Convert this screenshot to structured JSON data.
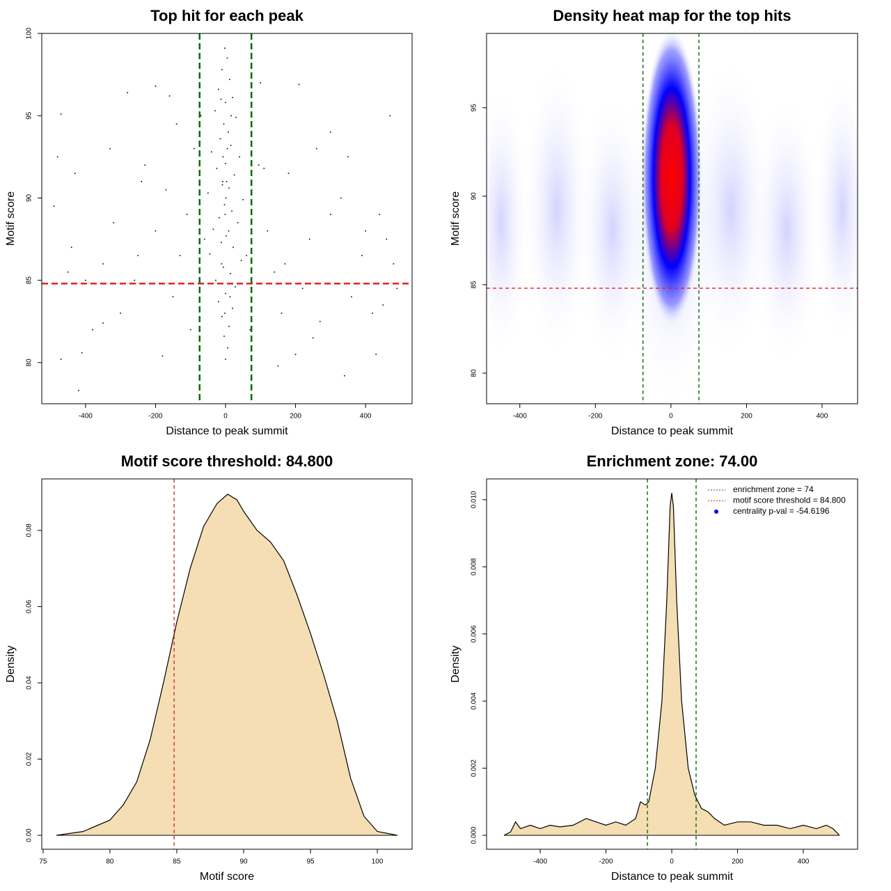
{
  "chart_data": [
    {
      "type": "scatter",
      "title": "Top hit for each peak",
      "xlabel": "Distance to peak summit",
      "ylabel": "Motif score",
      "xlim": [
        -525,
        533
      ],
      "ylim": [
        77.5,
        100
      ],
      "xticks": [
        -400,
        -200,
        0,
        200,
        400
      ],
      "yticks": [
        80,
        85,
        90,
        95,
        100
      ],
      "color": "#000000",
      "x": [
        -2,
        5,
        -10,
        12,
        -20,
        20,
        0,
        -30,
        30,
        -5,
        8,
        -15,
        15,
        -40,
        40,
        0,
        -25,
        25,
        -8,
        10,
        -50,
        50,
        -3,
        18,
        -18,
        35,
        -35,
        2,
        -12,
        22,
        -45,
        45,
        -6,
        14,
        -28,
        28,
        0,
        -20,
        20,
        -10,
        10,
        -4,
        6,
        0,
        -90,
        95,
        -110,
        120,
        -130,
        140,
        -150,
        160,
        -170,
        180,
        -200,
        210,
        -230,
        240,
        -260,
        270,
        -280,
        300,
        -320,
        330,
        -350,
        360,
        -380,
        390,
        -410,
        420,
        -430,
        440,
        -450,
        460,
        -470,
        480,
        -490,
        490,
        -420,
        340,
        -300,
        250,
        -240,
        200,
        -180,
        150,
        -160,
        100,
        -60,
        60,
        -70,
        70,
        -470,
        430,
        -350,
        300,
        -200,
        220,
        -100,
        110,
        -140,
        170,
        -250,
        260,
        -330,
        350,
        -400,
        400,
        -440,
        450,
        -480,
        470,
        5,
        -7,
        3,
        -1,
        9,
        -11,
        13,
        -2,
        1,
        -9,
        16,
        -13
      ],
      "y": [
        99.1,
        98.5,
        97.8,
        97.2,
        96.6,
        96.1,
        95.8,
        95.3,
        94.9,
        94.5,
        94.0,
        93.6,
        93.2,
        92.8,
        92.5,
        92.1,
        91.8,
        91.4,
        91.0,
        90.6,
        90.3,
        89.9,
        89.6,
        89.2,
        88.8,
        88.5,
        88.1,
        87.7,
        87.3,
        87.0,
        86.6,
        86.2,
        85.8,
        85.4,
        85.0,
        84.6,
        84.2,
        83.7,
        83.3,
        82.8,
        82.2,
        81.6,
        80.9,
        80.2,
        93.0,
        92.0,
        89.0,
        88.0,
        86.5,
        85.5,
        84.0,
        83.0,
        90.5,
        91.5,
        96.8,
        96.9,
        92.0,
        87.5,
        85.0,
        82.5,
        96.4,
        94.0,
        88.5,
        90.0,
        86.0,
        84.0,
        82.0,
        86.5,
        80.6,
        83.0,
        91.5,
        89.0,
        85.5,
        87.5,
        95.1,
        86.0,
        89.5,
        84.5,
        78.3,
        79.2,
        83.0,
        81.5,
        91.0,
        80.5,
        80.4,
        79.8,
        96.2,
        97.0,
        87.5,
        86.5,
        95.0,
        82.0,
        80.2,
        80.5,
        82.4,
        89.0,
        88.0,
        84.5,
        82.0,
        91.8,
        94.5,
        86.0,
        86.5,
        93.0,
        93.0,
        92.5,
        85.0,
        88.0,
        87.0,
        83.5,
        92.5,
        95.0,
        93.0,
        92.5,
        91.0,
        89.0,
        88.0,
        86.0,
        84.0,
        83.0,
        90.0,
        90.8,
        95.0,
        96.0
      ],
      "hlines": [
        {
          "value": 84.8,
          "color": "#e02020"
        }
      ],
      "vlines": [
        {
          "value": -74,
          "color": "#0a6a0a"
        },
        {
          "value": 74,
          "color": "#0a6a0a"
        }
      ]
    },
    {
      "type": "heatmap",
      "title": "Density heat map for the top hits",
      "xlabel": "Distance to peak summit",
      "ylabel": "Motif score",
      "xlim": [
        -488,
        494
      ],
      "ylim": [
        78.27,
        99.2
      ],
      "xticks": [
        -400,
        -200,
        0,
        200,
        400
      ],
      "yticks": [
        80,
        85,
        90,
        95
      ],
      "hlines": [
        {
          "value": 84.8,
          "color": "#e02020"
        }
      ],
      "vlines": [
        {
          "value": -74,
          "color": "#0a6a0a"
        },
        {
          "value": 74,
          "color": "#0a6a0a"
        }
      ]
    },
    {
      "type": "area",
      "title": "Motif score threshold: 84.800",
      "xlabel": "Motif score",
      "ylabel": "Density",
      "xlim": [
        74.9,
        102.6
      ],
      "ylim": [
        -0.00365,
        0.0935
      ],
      "xticks": [
        75,
        80,
        85,
        90,
        95,
        100
      ],
      "yticks": [
        {
          "value": 0,
          "label": "0.00"
        },
        {
          "value": 0.02,
          "label": "0.02"
        },
        {
          "value": 0.04,
          "label": "0.04"
        },
        {
          "value": 0.06,
          "label": "0.06"
        },
        {
          "value": 0.08,
          "label": "0.08"
        }
      ],
      "color": "#f5deb3",
      "x": [
        76,
        78,
        80,
        81,
        82,
        83,
        84,
        85,
        86,
        87,
        88,
        88.8,
        89.5,
        90,
        91,
        92,
        93,
        94,
        95,
        96,
        97,
        98,
        99,
        100,
        101.5
      ],
      "y": [
        0,
        0.001,
        0.004,
        0.008,
        0.014,
        0.025,
        0.04,
        0.056,
        0.07,
        0.081,
        0.087,
        0.0895,
        0.088,
        0.085,
        0.08,
        0.077,
        0.072,
        0.063,
        0.053,
        0.042,
        0.03,
        0.015,
        0.005,
        0.001,
        0
      ],
      "vlines": [
        {
          "value": 84.8,
          "color": "#d03030"
        }
      ]
    },
    {
      "type": "area",
      "title": "Enrichment zone: 74.00",
      "xlabel": "Distance to peak summit",
      "ylabel": "Density",
      "xlim": [
        -563,
        565
      ],
      "ylim": [
        -0.000415,
        0.01062
      ],
      "xticks": [
        -400,
        -200,
        0,
        200,
        400
      ],
      "yticks": [
        {
          "value": 0,
          "label": "0.000"
        },
        {
          "value": 0.002,
          "label": "0.002"
        },
        {
          "value": 0.004,
          "label": "0.004"
        },
        {
          "value": 0.006,
          "label": "0.006"
        },
        {
          "value": 0.008,
          "label": "0.008"
        },
        {
          "value": 0.01,
          "label": "0.010"
        }
      ],
      "color": "#f5deb3",
      "x": [
        -510,
        -490,
        -475,
        -460,
        -430,
        -400,
        -370,
        -340,
        -300,
        -260,
        -230,
        -200,
        -170,
        -140,
        -110,
        -95,
        -80,
        -70,
        -50,
        -30,
        -15,
        -5,
        0,
        5,
        15,
        30,
        50,
        70,
        90,
        110,
        130,
        160,
        200,
        240,
        280,
        320,
        360,
        400,
        440,
        470,
        490,
        510
      ],
      "y": [
        0,
        0.0001,
        0.0004,
        0.0002,
        0.0003,
        0.0002,
        0.0003,
        0.00025,
        0.0003,
        0.0005,
        0.0004,
        0.0003,
        0.0004,
        0.0003,
        0.0005,
        0.001,
        0.0009,
        0.001,
        0.002,
        0.004,
        0.007,
        0.0098,
        0.0102,
        0.0098,
        0.007,
        0.004,
        0.002,
        0.0012,
        0.0008,
        0.0007,
        0.0005,
        0.0003,
        0.0004,
        0.0004,
        0.0003,
        0.0003,
        0.0002,
        0.0003,
        0.0002,
        0.0003,
        0.0002,
        0
      ],
      "vlines": [
        {
          "value": -74,
          "color": "#0a6a0a"
        },
        {
          "value": 74,
          "color": "#0a6a0a"
        }
      ],
      "legend_position": "topright",
      "legend": [
        {
          "label": "enrichment zone = 74",
          "color": "#0a6a0a",
          "style": "dotted-line"
        },
        {
          "label": "motif score threshold = 84.800",
          "color": "#e02020",
          "style": "dotted-line"
        },
        {
          "label": "centrality p-val = -54.6196",
          "color": "#0000ff",
          "style": "dot"
        }
      ]
    }
  ]
}
